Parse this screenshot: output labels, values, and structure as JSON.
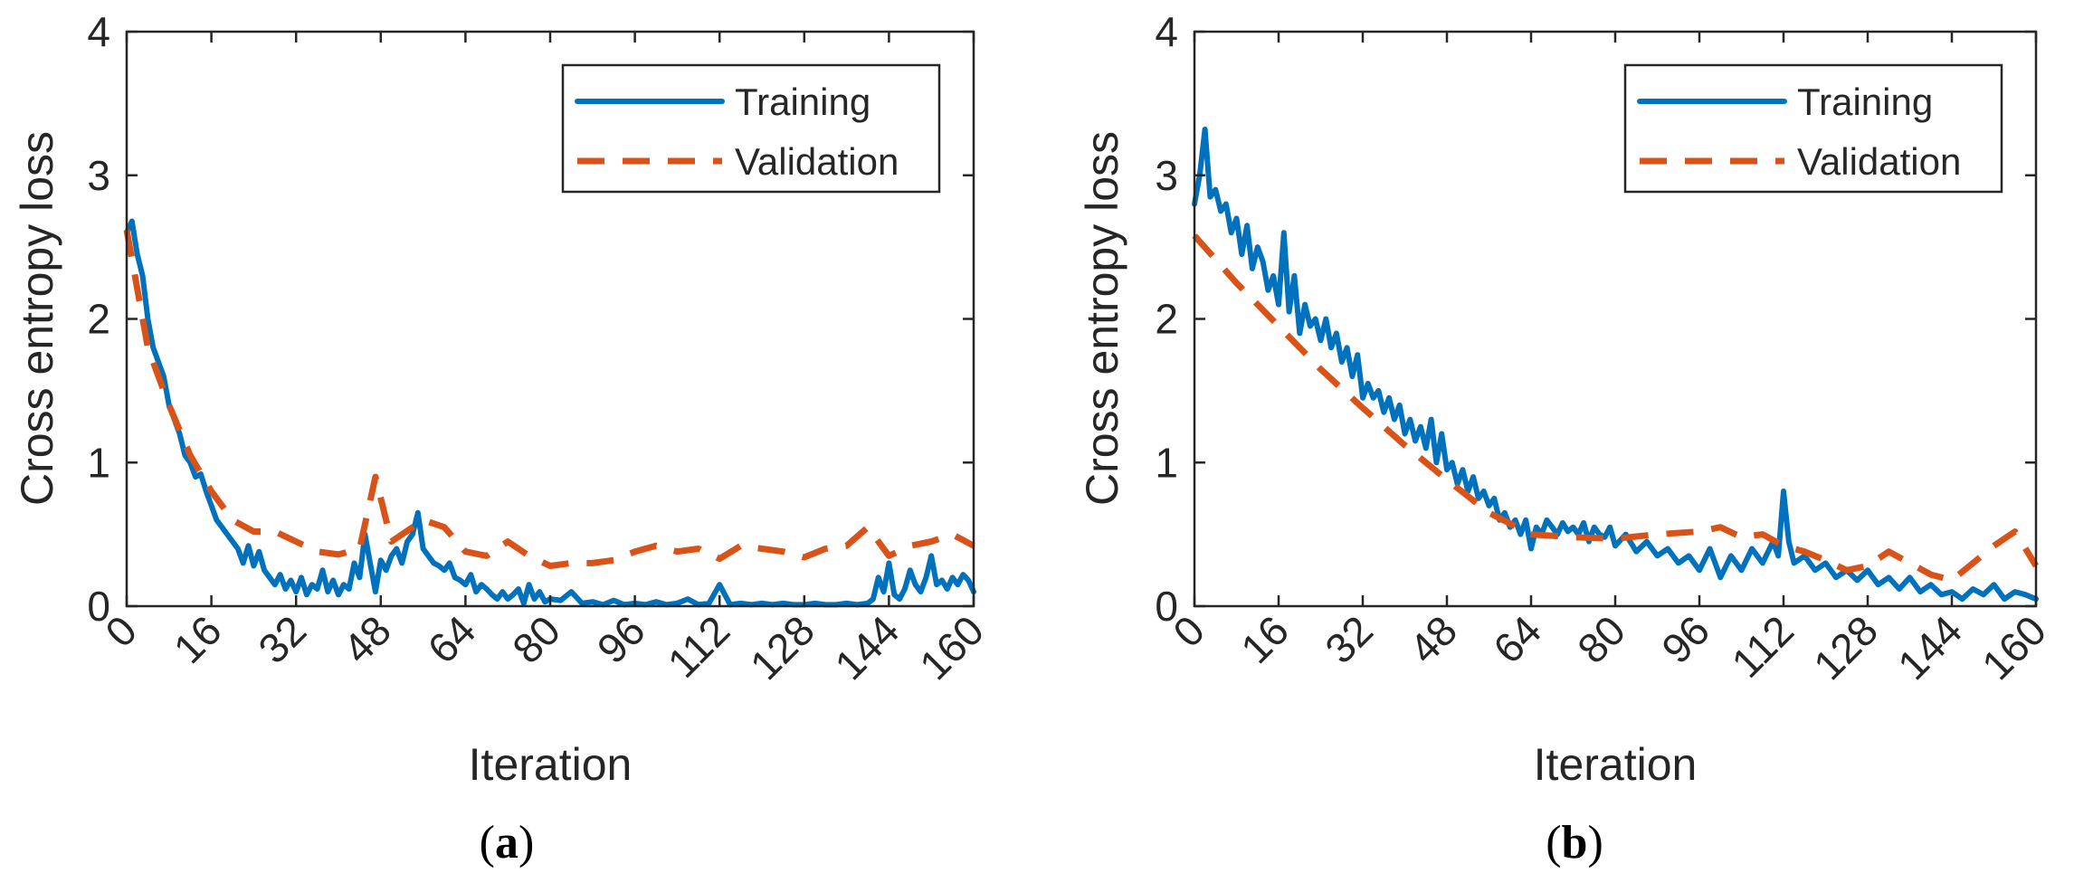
{
  "colors": {
    "training": "#0072BD",
    "validation": "#D95319"
  },
  "chart_data": [
    {
      "type": "line",
      "panel_label": "a",
      "xlabel": "Iteration",
      "ylabel": "Cross entropy loss",
      "xlim": [
        0,
        160
      ],
      "ylim": [
        0,
        4
      ],
      "xticks": [
        "0",
        "16",
        "32",
        "48",
        "64",
        "80",
        "96",
        "112",
        "128",
        "144",
        "160"
      ],
      "yticks": [
        "0",
        "1",
        "2",
        "3",
        "4"
      ],
      "legend_position": "top-right",
      "series": [
        {
          "name": "Training",
          "style": "solid",
          "x": [
            0,
            1,
            2,
            3,
            4,
            5,
            6,
            7,
            8,
            9,
            10,
            11,
            12,
            13,
            14,
            15,
            16,
            17,
            18,
            19,
            20,
            21,
            22,
            23,
            24,
            25,
            26,
            27,
            28,
            29,
            30,
            31,
            32,
            33,
            34,
            35,
            36,
            37,
            38,
            39,
            40,
            41,
            42,
            43,
            44,
            45,
            46,
            47,
            48,
            49,
            50,
            51,
            52,
            53,
            54,
            55,
            56,
            57,
            58,
            59,
            60,
            61,
            62,
            63,
            64,
            65,
            66,
            67,
            68,
            69,
            70,
            71,
            72,
            73,
            74,
            75,
            76,
            77,
            78,
            79,
            80,
            82,
            84,
            86,
            88,
            90,
            92,
            94,
            96,
            98,
            100,
            102,
            104,
            106,
            108,
            110,
            112,
            114,
            116,
            118,
            120,
            122,
            124,
            126,
            128,
            130,
            132,
            134,
            136,
            138,
            140,
            141,
            142,
            143,
            144,
            145,
            146,
            147,
            148,
            149,
            150,
            151,
            152,
            153,
            154,
            155,
            156,
            157,
            158,
            159,
            160
          ],
          "y": [
            2.6,
            2.68,
            2.45,
            2.3,
            2.0,
            1.8,
            1.7,
            1.6,
            1.4,
            1.3,
            1.2,
            1.05,
            1.0,
            0.9,
            0.92,
            0.8,
            0.7,
            0.6,
            0.55,
            0.5,
            0.45,
            0.4,
            0.3,
            0.42,
            0.28,
            0.38,
            0.25,
            0.2,
            0.15,
            0.22,
            0.12,
            0.18,
            0.1,
            0.2,
            0.08,
            0.15,
            0.12,
            0.25,
            0.1,
            0.18,
            0.08,
            0.15,
            0.12,
            0.3,
            0.2,
            0.5,
            0.3,
            0.1,
            0.32,
            0.25,
            0.35,
            0.4,
            0.3,
            0.45,
            0.5,
            0.65,
            0.4,
            0.35,
            0.3,
            0.28,
            0.25,
            0.3,
            0.2,
            0.18,
            0.15,
            0.22,
            0.1,
            0.15,
            0.12,
            0.08,
            0.05,
            0.1,
            0.05,
            0.08,
            0.12,
            0.02,
            0.15,
            0.05,
            0.1,
            0.03,
            0.05,
            0.04,
            0.1,
            0.02,
            0.03,
            0.01,
            0.04,
            0.01,
            0.02,
            0.01,
            0.03,
            0.01,
            0.02,
            0.05,
            0.01,
            0.02,
            0.15,
            0.01,
            0.02,
            0.01,
            0.02,
            0.01,
            0.02,
            0.01,
            0.01,
            0.02,
            0.01,
            0.01,
            0.02,
            0.01,
            0.02,
            0.05,
            0.2,
            0.1,
            0.3,
            0.08,
            0.05,
            0.12,
            0.25,
            0.15,
            0.1,
            0.2,
            0.35,
            0.15,
            0.18,
            0.12,
            0.2,
            0.15,
            0.22,
            0.18,
            0.1
          ]
        },
        {
          "name": "Validation",
          "style": "dashed",
          "x": [
            0,
            4,
            8,
            12,
            16,
            20,
            24,
            28,
            32,
            36,
            40,
            44,
            47,
            48,
            50,
            56,
            60,
            64,
            68,
            72,
            76,
            80,
            84,
            88,
            92,
            96,
            100,
            104,
            108,
            112,
            116,
            120,
            124,
            128,
            132,
            136,
            140,
            144,
            148,
            152,
            156,
            160
          ],
          "y": [
            2.62,
            1.8,
            1.4,
            1.05,
            0.8,
            0.6,
            0.52,
            0.52,
            0.45,
            0.38,
            0.36,
            0.4,
            0.9,
            0.75,
            0.45,
            0.6,
            0.55,
            0.38,
            0.35,
            0.45,
            0.35,
            0.28,
            0.3,
            0.3,
            0.32,
            0.38,
            0.42,
            0.38,
            0.4,
            0.33,
            0.42,
            0.4,
            0.38,
            0.34,
            0.4,
            0.42,
            0.55,
            0.35,
            0.42,
            0.45,
            0.5,
            0.42
          ]
        }
      ]
    },
    {
      "type": "line",
      "panel_label": "b",
      "xlabel": "Iteration",
      "ylabel": "Cross entropy loss",
      "xlim": [
        0,
        160
      ],
      "ylim": [
        0,
        4
      ],
      "xticks": [
        "0",
        "16",
        "32",
        "48",
        "64",
        "80",
        "96",
        "112",
        "128",
        "144",
        "160"
      ],
      "yticks": [
        "0",
        "1",
        "2",
        "3",
        "4"
      ],
      "legend_position": "top-right",
      "series": [
        {
          "name": "Training",
          "style": "solid",
          "x": [
            0,
            1,
            2,
            3,
            4,
            5,
            6,
            7,
            8,
            9,
            10,
            11,
            12,
            13,
            14,
            15,
            16,
            17,
            18,
            19,
            20,
            21,
            22,
            23,
            24,
            25,
            26,
            27,
            28,
            29,
            30,
            31,
            32,
            33,
            34,
            35,
            36,
            37,
            38,
            39,
            40,
            41,
            42,
            43,
            44,
            45,
            46,
            47,
            48,
            49,
            50,
            51,
            52,
            53,
            54,
            55,
            56,
            57,
            58,
            59,
            60,
            61,
            62,
            63,
            64,
            65,
            66,
            67,
            68,
            69,
            70,
            71,
            72,
            73,
            74,
            75,
            76,
            77,
            78,
            79,
            80,
            82,
            84,
            86,
            88,
            90,
            92,
            94,
            96,
            98,
            100,
            102,
            104,
            106,
            108,
            110,
            111,
            112,
            113,
            114,
            116,
            118,
            120,
            122,
            124,
            126,
            128,
            130,
            132,
            134,
            136,
            138,
            140,
            142,
            144,
            146,
            148,
            150,
            152,
            154,
            156,
            158,
            160
          ],
          "y": [
            2.8,
            3.0,
            3.32,
            2.85,
            2.9,
            2.75,
            2.8,
            2.6,
            2.7,
            2.45,
            2.65,
            2.35,
            2.5,
            2.4,
            2.2,
            2.3,
            2.1,
            2.6,
            2.05,
            2.3,
            1.9,
            2.1,
            1.95,
            2.0,
            1.85,
            2.0,
            1.8,
            1.9,
            1.7,
            1.8,
            1.6,
            1.75,
            1.45,
            1.55,
            1.45,
            1.5,
            1.35,
            1.45,
            1.3,
            1.4,
            1.2,
            1.3,
            1.15,
            1.25,
            1.1,
            1.3,
            1.0,
            1.2,
            0.95,
            1.0,
            0.85,
            0.95,
            0.8,
            0.9,
            0.75,
            0.8,
            0.7,
            0.75,
            0.6,
            0.65,
            0.55,
            0.6,
            0.5,
            0.6,
            0.4,
            0.55,
            0.5,
            0.6,
            0.55,
            0.5,
            0.58,
            0.52,
            0.55,
            0.5,
            0.58,
            0.45,
            0.55,
            0.5,
            0.48,
            0.55,
            0.42,
            0.5,
            0.38,
            0.45,
            0.35,
            0.4,
            0.3,
            0.35,
            0.25,
            0.4,
            0.2,
            0.35,
            0.25,
            0.4,
            0.3,
            0.45,
            0.35,
            0.8,
            0.45,
            0.3,
            0.35,
            0.25,
            0.3,
            0.2,
            0.25,
            0.18,
            0.25,
            0.15,
            0.2,
            0.12,
            0.2,
            0.1,
            0.15,
            0.08,
            0.1,
            0.05,
            0.12,
            0.08,
            0.15,
            0.05,
            0.1,
            0.08,
            0.05
          ]
        },
        {
          "name": "Validation",
          "style": "dashed",
          "x": [
            0,
            8,
            16,
            24,
            32,
            40,
            48,
            56,
            64,
            72,
            80,
            88,
            96,
            100,
            104,
            108,
            112,
            116,
            120,
            124,
            128,
            132,
            136,
            140,
            144,
            148,
            152,
            156,
            160
          ],
          "y": [
            2.58,
            2.25,
            1.95,
            1.65,
            1.38,
            1.12,
            0.88,
            0.65,
            0.5,
            0.48,
            0.47,
            0.5,
            0.52,
            0.55,
            0.48,
            0.5,
            0.42,
            0.38,
            0.32,
            0.25,
            0.28,
            0.38,
            0.3,
            0.22,
            0.18,
            0.3,
            0.42,
            0.52,
            0.28
          ]
        }
      ]
    }
  ]
}
